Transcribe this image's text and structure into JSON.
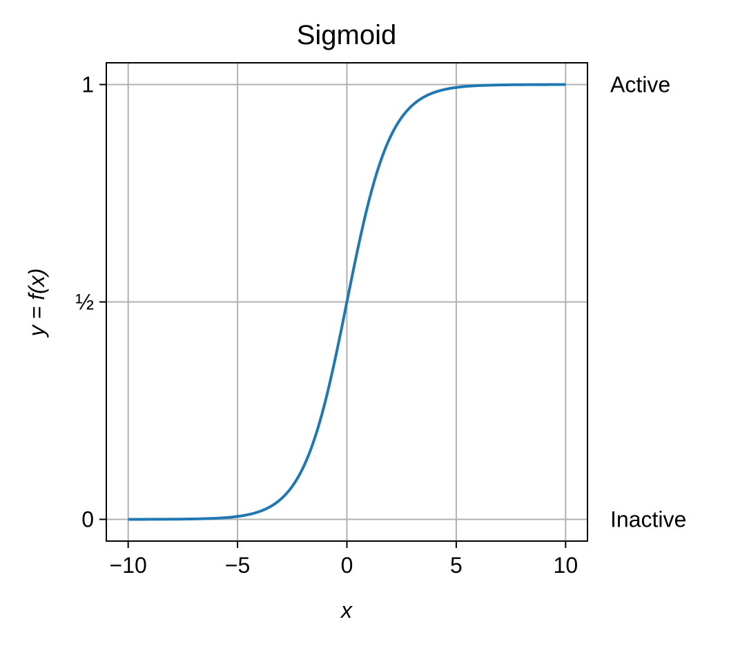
{
  "chart_data": {
    "type": "line",
    "title": "Sigmoid",
    "xlabel": "x",
    "ylabel": "y = f(x)",
    "xlim": [
      -11,
      11
    ],
    "ylim": [
      -0.05,
      1.05
    ],
    "x_ticks": [
      {
        "value": -10,
        "label": "−10"
      },
      {
        "value": -5,
        "label": "−5"
      },
      {
        "value": 0,
        "label": "0"
      },
      {
        "value": 5,
        "label": "5"
      },
      {
        "value": 10,
        "label": "10"
      }
    ],
    "y_ticks": [
      {
        "value": 0,
        "label": "0"
      },
      {
        "value": 0.5,
        "label": "½"
      },
      {
        "value": 1,
        "label": "1"
      }
    ],
    "secondary_y_labels": [
      {
        "value": 0,
        "label": "Inactive"
      },
      {
        "value": 1,
        "label": "Active"
      }
    ],
    "grid": true,
    "series": [
      {
        "color": "#1f77b4",
        "x": [
          -10,
          -9,
          -8,
          -7,
          -6,
          -5,
          -4,
          -3,
          -2.5,
          -2,
          -1.5,
          -1,
          -0.5,
          0,
          0.5,
          1,
          1.5,
          2,
          2.5,
          3,
          4,
          5,
          6,
          7,
          8,
          9,
          10
        ],
        "y": [
          0.0,
          0.0001,
          0.0003,
          0.0009,
          0.0025,
          0.0067,
          0.018,
          0.0474,
          0.0759,
          0.1192,
          0.1824,
          0.2689,
          0.3775,
          0.5,
          0.6225,
          0.7311,
          0.8176,
          0.8808,
          0.9241,
          0.9526,
          0.982,
          0.9933,
          0.9975,
          0.9991,
          0.9997,
          0.9999,
          1.0
        ]
      }
    ]
  }
}
